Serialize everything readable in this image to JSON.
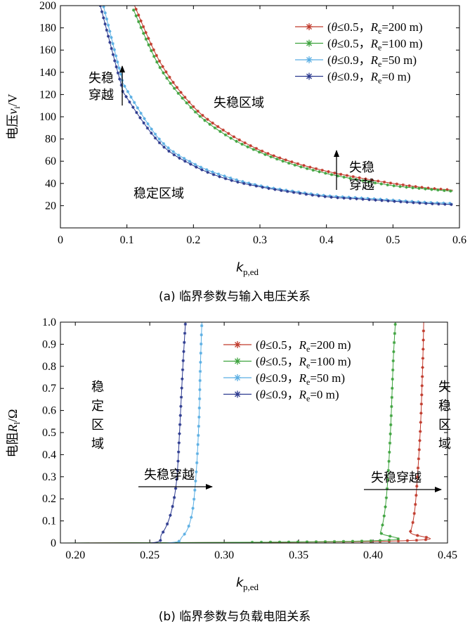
{
  "chart_data": [
    {
      "type": "line",
      "caption": "(a) 临界参数与输入电压关系",
      "xlabel_main": "k",
      "xlabel_sub": "p,ed",
      "ylabel_main": "电压",
      "ylabel_var": "v",
      "ylabel_sub": "i",
      "ylabel_unit": "/V",
      "xlim": [
        0,
        0.6
      ],
      "ylim": [
        0,
        200
      ],
      "xticks": [
        "0",
        "0.1",
        "0.2",
        "0.3",
        "0.4",
        "0.5",
        "0.6"
      ],
      "yticks": [
        "20",
        "40",
        "60",
        "80",
        "100",
        "120",
        "140",
        "160",
        "180",
        "200"
      ],
      "legend_position": "top-right",
      "series": [
        {
          "name": "(θ≤0.5, Re=200 m)",
          "label_prefix": "(",
          "label_theta": "θ",
          "label_cond": "≤0.5，",
          "label_r": "R",
          "label_rsub": "e",
          "label_val": "=200 m)",
          "color": "#c0392b",
          "x": [
            0.11,
            0.15,
            0.2,
            0.25,
            0.3,
            0.35,
            0.4,
            0.45,
            0.5,
            0.55,
            0.59
          ],
          "y": [
            202,
            149,
            109,
            86,
            70,
            59,
            51,
            45,
            40,
            36,
            34
          ]
        },
        {
          "name": "(θ≤0.5, Re=100 m)",
          "label_prefix": "(",
          "label_theta": "θ",
          "label_cond": "≤0.5，",
          "label_r": "R",
          "label_rsub": "e",
          "label_val": "=100 m)",
          "color": "#3ea33e",
          "x": [
            0.11,
            0.15,
            0.2,
            0.25,
            0.3,
            0.35,
            0.4,
            0.45,
            0.5,
            0.55,
            0.59
          ],
          "y": [
            196,
            144,
            106,
            83,
            68,
            57,
            49,
            43,
            38,
            35,
            33
          ]
        },
        {
          "name": "(θ≤0.9, Re=50 m)",
          "label_prefix": "(",
          "label_theta": "θ",
          "label_cond": "≤0.9，",
          "label_r": "R",
          "label_rsub": "e",
          "label_val": "=50 m)",
          "color": "#5aaee3",
          "x": [
            0.065,
            0.09,
            0.1,
            0.15,
            0.2,
            0.25,
            0.3,
            0.35,
            0.4,
            0.45,
            0.5,
            0.55,
            0.59
          ],
          "y": [
            199,
            140,
            124,
            79,
            58,
            46,
            38,
            33,
            29,
            27,
            25,
            23,
            22
          ]
        },
        {
          "name": "(θ≤0.9, Re=0 m)",
          "label_prefix": "(",
          "label_theta": "θ",
          "label_cond": "≤0.9，",
          "label_r": "R",
          "label_rsub": "e",
          "label_val": "=0 m)",
          "color": "#2c3a8f",
          "x": [
            0.06,
            0.09,
            0.1,
            0.15,
            0.2,
            0.25,
            0.3,
            0.35,
            0.4,
            0.45,
            0.5,
            0.55,
            0.59
          ],
          "y": [
            200,
            132,
            117,
            76,
            56,
            44,
            37,
            32,
            28,
            26,
            24,
            22,
            21
          ]
        }
      ],
      "annotations": {
        "stable": "稳定区域",
        "unstable": "失稳区域",
        "cross_1_line1": "失稳",
        "cross_1_line2": "穿越",
        "cross_2_line1": "失稳",
        "cross_2_line2": "穿越"
      }
    },
    {
      "type": "line",
      "caption": "(b) 临界参数与负载电阻关系",
      "xlabel_main": "k",
      "xlabel_sub": "p,ed",
      "ylabel_main": "电阻",
      "ylabel_var": "R",
      "ylabel_sub": "l",
      "ylabel_unit": "/Ω",
      "xlim": [
        0.19,
        0.45
      ],
      "ylim": [
        0,
        1.0
      ],
      "xticks": [
        "0.20",
        "0.25",
        "0.30",
        "0.35",
        "0.40",
        "0.45"
      ],
      "yticks": [
        "0",
        "0.1",
        "0.2",
        "0.3",
        "0.4",
        "0.5",
        "0.6",
        "0.7",
        "0.8",
        "0.9",
        "1.0"
      ],
      "legend_position": "top-center",
      "series": [
        {
          "name": "(θ≤0.5, Re=200 m)",
          "label_prefix": "(",
          "label_theta": "θ",
          "label_cond": "≤0.5，",
          "label_r": "R",
          "label_rsub": "e",
          "label_val": "=200 m)",
          "color": "#c0392b",
          "x": [
            0.19,
            0.42,
            0.425,
            0.428,
            0.43,
            0.432,
            0.4335,
            0.434
          ],
          "y": [
            0,
            0.01,
            0.05,
            0.15,
            0.32,
            0.55,
            0.85,
            1.0
          ]
        },
        {
          "name": "(θ≤0.5, Re=100 m)",
          "label_prefix": "(",
          "label_theta": "θ",
          "label_cond": "≤0.5，",
          "label_r": "R",
          "label_rsub": "e",
          "label_val": "=100 m)",
          "color": "#3ea33e",
          "x": [
            0.19,
            0.4,
            0.405,
            0.408,
            0.41,
            0.412,
            0.4135,
            0.415
          ],
          "y": [
            0,
            0.01,
            0.05,
            0.15,
            0.3,
            0.55,
            0.82,
            1.0
          ]
        },
        {
          "name": "(θ≤0.9, Re=50 m)",
          "label_prefix": "(",
          "label_theta": "θ",
          "label_cond": "≤0.9，",
          "label_r": "R",
          "label_rsub": "e",
          "label_val": "=50 m)",
          "color": "#5aaee3",
          "x": [
            0.19,
            0.26,
            0.272,
            0.278,
            0.281,
            0.283,
            0.284,
            0.285
          ],
          "y": [
            0,
            0.0,
            0.03,
            0.12,
            0.3,
            0.55,
            0.8,
            1.0
          ]
        },
        {
          "name": "(θ≤0.9, Re=0 m)",
          "label_prefix": "(",
          "label_theta": "θ",
          "label_cond": "≤0.9，",
          "label_r": "R",
          "label_rsub": "e",
          "label_val": "=0 m)",
          "color": "#2c3a8f",
          "x": [
            0.19,
            0.25,
            0.258,
            0.264,
            0.268,
            0.27,
            0.272,
            0.274
          ],
          "y": [
            0,
            0.0,
            0.04,
            0.13,
            0.28,
            0.5,
            0.77,
            1.0
          ]
        }
      ],
      "annotations": {
        "stable_1": "稳",
        "stable_2": "定",
        "stable_3": "区",
        "stable_4": "域",
        "unstable_1": "失",
        "unstable_2": "稳",
        "unstable_3": "区",
        "unstable_4": "域",
        "cross_1": "失稳穿越",
        "cross_2": "失稳穿越"
      }
    }
  ]
}
